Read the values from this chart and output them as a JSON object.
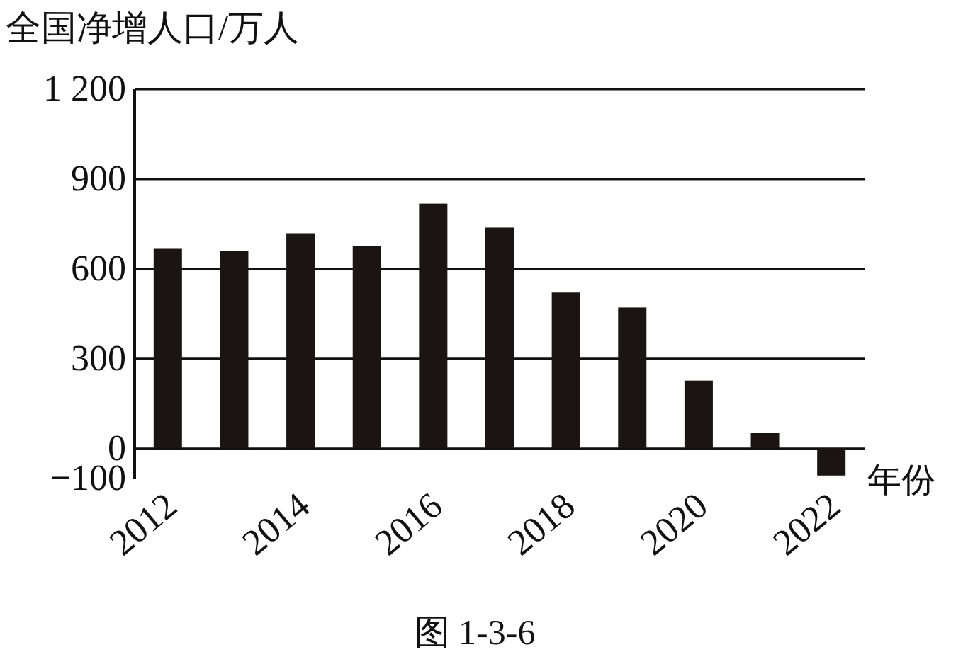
{
  "chart_data": {
    "type": "bar",
    "ylabel": "全国净增人口/万人",
    "xlabel": "年份",
    "annotations": [
      "图 1-3-6"
    ],
    "categories": [
      "2012",
      null,
      "2014",
      null,
      "2016",
      null,
      "2018",
      null,
      "2020",
      null,
      "2022"
    ],
    "values": [
      667,
      659,
      719,
      676,
      818,
      738,
      521,
      471,
      227,
      52,
      -90
    ],
    "color": "#1a1414",
    "ylim": [
      -100,
      1200
    ],
    "yticks": [
      {
        "value": -100,
        "label": "−100"
      },
      0,
      300,
      600,
      900,
      {
        "value": 1200,
        "label": "1 200"
      }
    ],
    "grid": "y"
  }
}
